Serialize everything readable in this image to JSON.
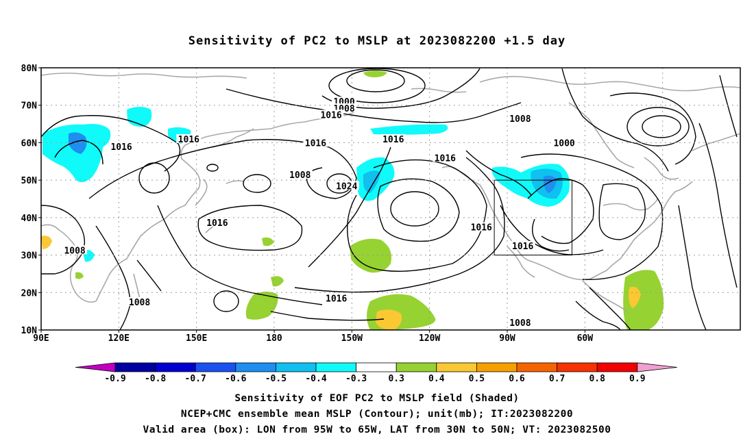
{
  "title": "Sensitivity of PC2 to MSLP at 2023082200 +1.5 day",
  "map": {
    "lat_labels": [
      "80N",
      "70N",
      "60N",
      "50N",
      "40N",
      "30N",
      "20N",
      "10N"
    ],
    "lon_labels": [
      "90E",
      "120E",
      "150E",
      "180",
      "150W",
      "120W",
      "90W",
      "60W"
    ],
    "contour_labels": [
      {
        "text": "1000",
        "lon": -153,
        "lat": 71
      },
      {
        "text": "1008",
        "lon": -153,
        "lat": 69.2
      },
      {
        "text": "1016",
        "lon": -158,
        "lat": 67.5
      },
      {
        "text": "1016",
        "lon": -134,
        "lat": 61
      },
      {
        "text": "1008",
        "lon": -85,
        "lat": 66.5
      },
      {
        "text": "1000",
        "lon": -68,
        "lat": 60
      },
      {
        "text": "1016",
        "lon": -114,
        "lat": 56
      },
      {
        "text": "1016",
        "lon": -164,
        "lat": 60
      },
      {
        "text": "1016",
        "lon": 147,
        "lat": 61
      },
      {
        "text": "1016",
        "lon": 121,
        "lat": 59
      },
      {
        "text": "1008",
        "lon": -170,
        "lat": 51.5
      },
      {
        "text": "1024",
        "lon": -152,
        "lat": 48.5
      },
      {
        "text": "1016",
        "lon": 158,
        "lat": 38.7
      },
      {
        "text": "1016",
        "lon": -100,
        "lat": 37.5
      },
      {
        "text": "1016",
        "lon": -84,
        "lat": 32.5
      },
      {
        "text": "1008",
        "lon": 103,
        "lat": 31.3
      },
      {
        "text": "1016",
        "lon": -156,
        "lat": 18.5
      },
      {
        "text": "1008",
        "lon": 128,
        "lat": 17.5
      },
      {
        "text": "1008",
        "lon": -85,
        "lat": 12
      }
    ],
    "valid_box": {
      "lon_min": -95,
      "lon_max": -65,
      "lat_min": 30,
      "lat_max": 50
    }
  },
  "colorbar": {
    "labels": [
      "-0.9",
      "-0.8",
      "-0.7",
      "-0.6",
      "-0.5",
      "-0.4",
      "-0.3",
      "0.3",
      "0.4",
      "0.5",
      "0.6",
      "0.7",
      "0.8",
      "0.9"
    ],
    "colors": [
      "#c000c0",
      "#0000a0",
      "#0000d0",
      "#1a50f0",
      "#1e8ef0",
      "#0fc0f0",
      "#10fafa",
      "#ffffff",
      "#96d232",
      "#fac832",
      "#f5a000",
      "#f56400",
      "#f53200",
      "#f00000",
      "#f0a0d0"
    ]
  },
  "captions": {
    "line1": "Sensitivity of EOF PC2 to MSLP field (Shaded)",
    "line2": "NCEP+CMC ensemble mean MSLP (Contour); unit(mb); IT:2023082200",
    "line3": "Valid area (box): LON from 95W to 65W, LAT from 30N to 50N; VT: 2023082500"
  }
}
